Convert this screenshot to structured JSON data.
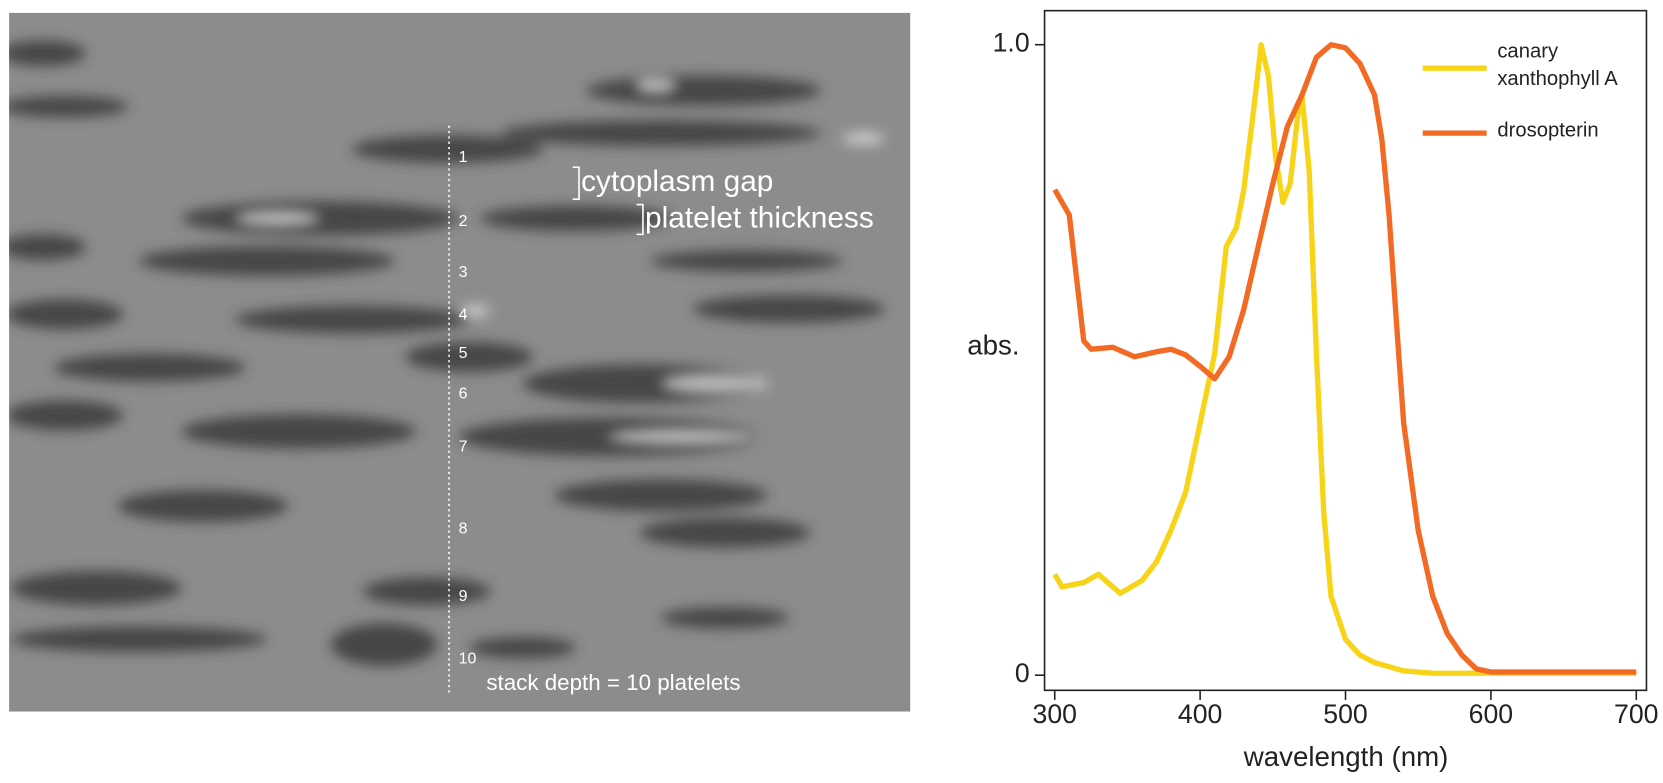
{
  "image_panel": {
    "stack_numbers": [
      "1",
      "2",
      "3",
      "4",
      "5",
      "6",
      "7",
      "8",
      "9",
      "10"
    ],
    "cytoplasm_label": "cytoplasm gap",
    "thickness_label": "platelet thickness",
    "depth_label": "stack depth = 10 platelets"
  },
  "chart_data": {
    "type": "line",
    "x_label": "wavelength (nm)",
    "y_label": "abs.",
    "xlim": [
      293,
      707
    ],
    "ylim": [
      -0.024,
      1.054
    ],
    "xticks": [
      300,
      400,
      500,
      600,
      700
    ],
    "yticks": [
      0,
      {
        "value": 1,
        "label": "1.0"
      }
    ],
    "grid": false,
    "legend": "upper right",
    "series": [
      {
        "name": "canary xanthophyll A",
        "color": "#f7d417",
        "x": [
          300,
          305,
          320,
          330,
          345,
          360,
          370,
          380,
          390,
          400,
          410,
          418,
          425,
          430,
          437,
          442,
          447,
          452,
          457,
          462,
          467,
          470,
          475,
          480,
          485,
          490,
          500,
          510,
          520,
          540,
          560,
          600,
          650,
          700
        ],
        "values": [
          0.16,
          0.14,
          0.147,
          0.16,
          0.13,
          0.15,
          0.18,
          0.23,
          0.29,
          0.4,
          0.51,
          0.68,
          0.71,
          0.77,
          0.9,
          1.0,
          0.95,
          0.82,
          0.75,
          0.78,
          0.885,
          0.92,
          0.8,
          0.51,
          0.26,
          0.125,
          0.057,
          0.032,
          0.02,
          0.007,
          0.003,
          0.003,
          0.003,
          0.003
        ]
      },
      {
        "name": "drosopterin",
        "color": "#f26a24",
        "x": [
          300,
          310,
          315,
          320,
          325,
          340,
          355,
          370,
          380,
          390,
          400,
          410,
          420,
          430,
          440,
          450,
          460,
          470,
          480,
          490,
          500,
          510,
          520,
          525,
          530,
          535,
          540,
          550,
          560,
          570,
          580,
          590,
          600,
          650,
          700
        ],
        "values": [
          0.77,
          0.73,
          0.63,
          0.53,
          0.517,
          0.52,
          0.505,
          0.513,
          0.517,
          0.508,
          0.49,
          0.47,
          0.505,
          0.58,
          0.68,
          0.78,
          0.87,
          0.92,
          0.98,
          1.0,
          0.995,
          0.97,
          0.92,
          0.85,
          0.73,
          0.56,
          0.4,
          0.23,
          0.125,
          0.066,
          0.032,
          0.01,
          0.005,
          0.005,
          0.005
        ]
      }
    ]
  }
}
